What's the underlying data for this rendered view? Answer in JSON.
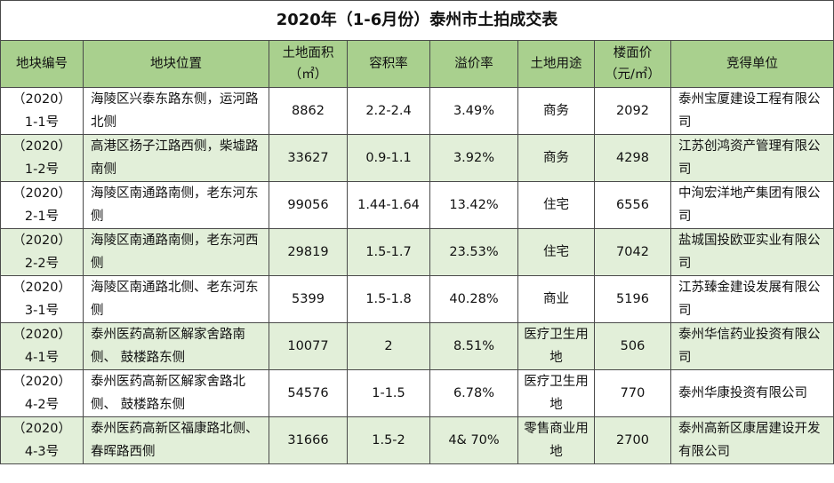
{
  "title": "2020年（1-6月份）泰州市土拍成交表",
  "headers": {
    "code": "地块编号",
    "location": "地块位置",
    "area_line1": "土地面积",
    "area_line2": "（㎡）",
    "far": "容积率",
    "premium": "溢价率",
    "usage": "土地用途",
    "price_line1": "楼面价",
    "price_line2": "（元/㎡）",
    "winner": "竞得单位"
  },
  "rows": [
    {
      "code1": "（2020）",
      "code2": "1-1号",
      "loc": "海陵区兴泰东路东侧，运河路北侧",
      "area": "8862",
      "far": "2.2-2.4",
      "premium": "3.49%",
      "usage": "商务",
      "price": "2092",
      "winner": "泰州宝厦建设工程有限公司"
    },
    {
      "code1": "（2020）",
      "code2": "1-2号",
      "loc": "高港区扬子江路西侧，柴墟路南侧",
      "area": "33627",
      "far": "0.9-1.1",
      "premium": "3.92%",
      "usage": "商务",
      "price": "4298",
      "winner": "江苏创鸿资产管理有限公司"
    },
    {
      "code1": "（2020）",
      "code2": "2-1号",
      "loc": "海陵区南通路南侧，老东河东侧",
      "area": "99056",
      "far": "1.44-1.64",
      "premium": "13.42%",
      "usage": "住宅",
      "price": "6556",
      "winner": "中洵宏洋地产集团有限公司"
    },
    {
      "code1": "（2020）",
      "code2": "2-2号",
      "loc": "海陵区南通路南侧，老东河西侧",
      "area": "29819",
      "far": "1.5-1.7",
      "premium": "23.53%",
      "usage": "住宅",
      "price": "7042",
      "winner": "盐城国投欧亚实业有限公司"
    },
    {
      "code1": "（2020）",
      "code2": "3-1号",
      "loc": "海陵区南通路北侧、老东河东侧",
      "area": "5399",
      "far": "1.5-1.8",
      "premium": "40.28%",
      "usage": "商业",
      "price": "5196",
      "winner": "江苏臻金建设发展有限公司"
    },
    {
      "code1": "（2020）",
      "code2": "4-1号",
      "loc": "泰州医药高新区解家舍路南侧、 鼓楼路东侧",
      "area": "10077",
      "far": "2",
      "premium": "8.51%",
      "usage": "医疗卫生用地",
      "price": "506",
      "winner": "泰州华信药业投资有限公司"
    },
    {
      "code1": "（2020）",
      "code2": "4-2号",
      "loc": "泰州医药高新区解家舍路北侧、 鼓楼路东侧",
      "area": "54576",
      "far": "1-1.5",
      "premium": "6.78%",
      "usage": "医疗卫生用地",
      "price": "770",
      "winner": "泰州华康投资有限公司"
    },
    {
      "code1": "（2020）",
      "code2": "4-3号",
      "loc": "泰州医药高新区福康路北侧、春晖路西侧",
      "area": "31666",
      "far": "1.5-2",
      "premium": "4& 70%",
      "usage": "零售商业用地",
      "price": "2700",
      "winner": "泰州高新区康居建设开发有限公司"
    }
  ]
}
